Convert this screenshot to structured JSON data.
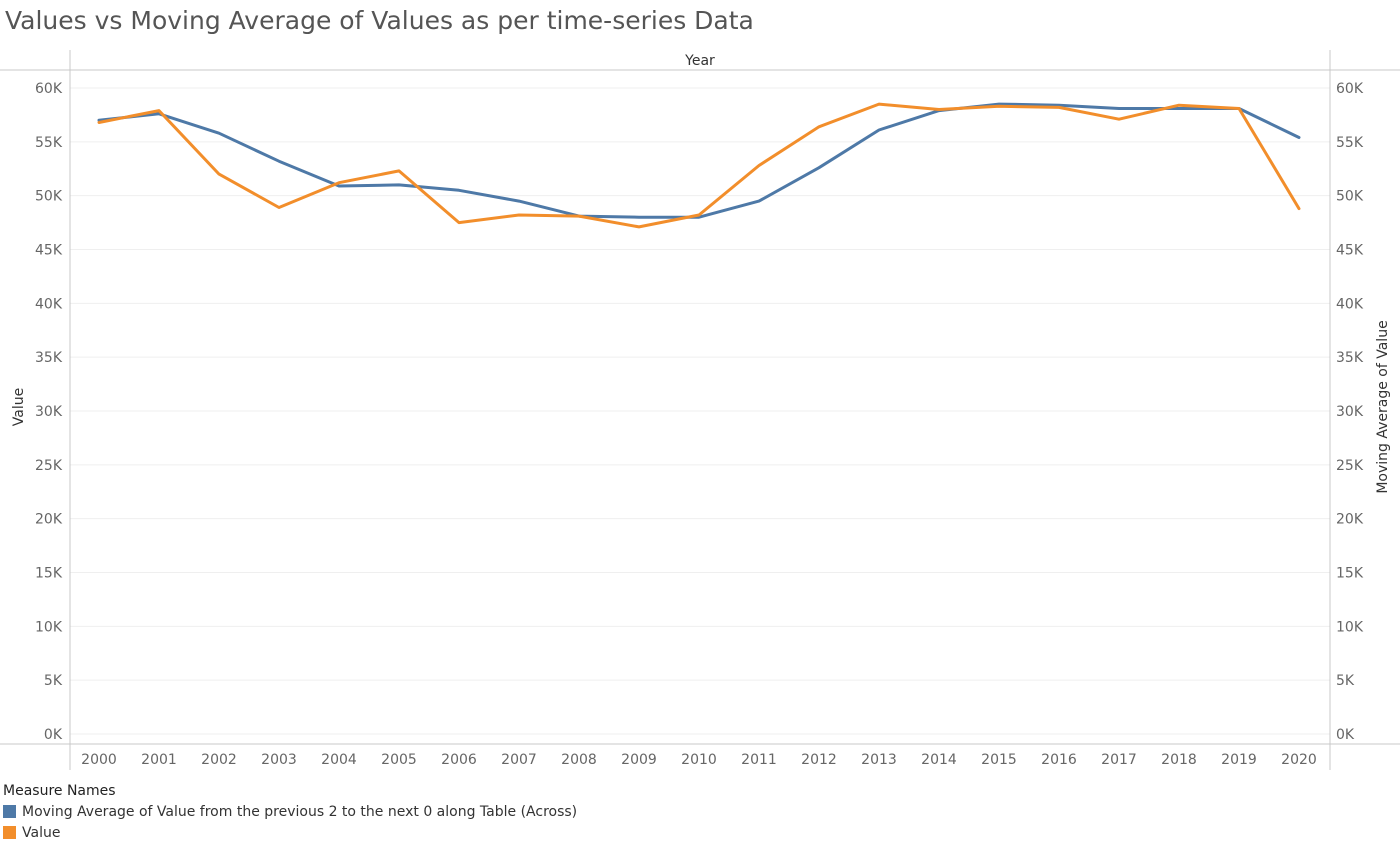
{
  "chart_data": {
    "type": "line",
    "title": "Values vs Moving Average of Values as per time-series Data",
    "top_label": "Year",
    "xlabel": "",
    "ylabel": "Value",
    "y2label": "Moving Average of Value",
    "ylim": [
      0,
      60000
    ],
    "ytick_values": [
      0,
      5000,
      10000,
      15000,
      20000,
      25000,
      30000,
      35000,
      40000,
      45000,
      50000,
      55000,
      60000
    ],
    "ytick_labels": [
      "0K",
      "5K",
      "10K",
      "15K",
      "20K",
      "25K",
      "30K",
      "35K",
      "40K",
      "45K",
      "50K",
      "55K",
      "60K"
    ],
    "categories": [
      "2000",
      "2001",
      "2002",
      "2003",
      "2004",
      "2005",
      "2006",
      "2007",
      "2008",
      "2009",
      "2010",
      "2011",
      "2012",
      "2013",
      "2014",
      "2015",
      "2016",
      "2017",
      "2018",
      "2019",
      "2020"
    ],
    "series": [
      {
        "name": "Moving Average of Value from the previous 2 to the next 0 along Table (Across)",
        "color": "#4e79a7",
        "axis": "right",
        "values": [
          57000,
          57600,
          55800,
          53200,
          50900,
          51000,
          50500,
          49500,
          48100,
          48000,
          48000,
          49500,
          52600,
          56100,
          57900,
          58500,
          58400,
          58100,
          58100,
          58100,
          55400
        ]
      },
      {
        "name": "Value",
        "color": "#f28e2b",
        "axis": "left",
        "values": [
          56800,
          57900,
          52000,
          48900,
          51200,
          52300,
          47500,
          48200,
          48100,
          47100,
          48200,
          52800,
          56400,
          58500,
          58000,
          58300,
          58200,
          57100,
          58400,
          58100,
          48800
        ]
      }
    ],
    "grid": true,
    "legend_title": "Measure Names",
    "legend_position": "bottom-left"
  }
}
